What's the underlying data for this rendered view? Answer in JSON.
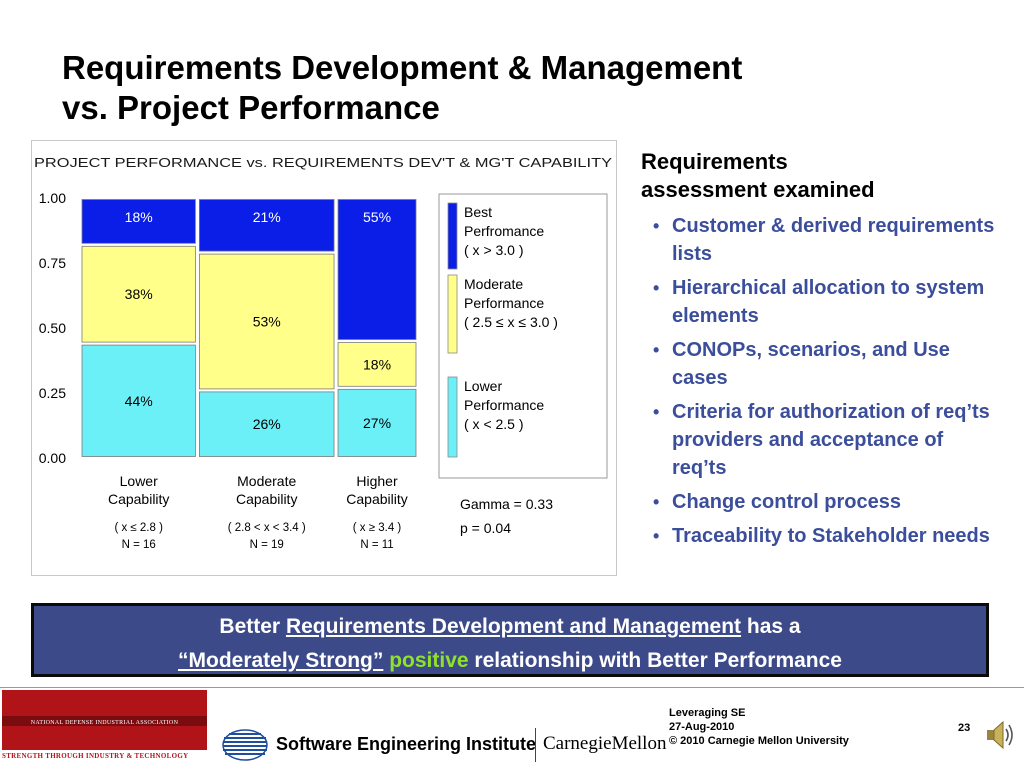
{
  "slide": {
    "title_line1": "Requirements Development & Management",
    "title_line2": "vs. Project Performance"
  },
  "side_panel": {
    "heading_line1": "Requirements",
    "heading_line2": "assessment examined",
    "bullets": [
      "Customer & derived requirements lists",
      "Hierarchical allocation to system elements",
      "CONOPs, scenarios, and Use cases",
      "Criteria for authorization of req’ts providers and acceptance of req’ts",
      "Change control process",
      "Traceability to Stakeholder needs"
    ]
  },
  "callout": {
    "l1_prefix": "Better ",
    "l1_link": "Requirements Development and Management",
    "l1_suffix": " has a",
    "l2_quote": "“Moderately Strong”",
    "l2_positive": "positive",
    "l2_suffix": " relationship with  Better Performance"
  },
  "footer": {
    "ndia_top": "NATIONAL DEFENSE INDUSTRIAL ASSOCIATION",
    "ndia_bottom": "STRENGTH THROUGH INDUSTRY & TECHNOLOGY",
    "sei": "Software Engineering Institute",
    "cmu": "CarnegieMellon",
    "meta_line1": "Leveraging SE",
    "meta_line2": "27-Aug-2010",
    "meta_line3": "© 2010 Carnegie Mellon University",
    "page": "23"
  },
  "colors": {
    "best": "#0a1ee8",
    "moderate": "#ffff8a",
    "lower": "#6cf0f8",
    "bullet_text": "#3b4e9c",
    "callout_bg": "#3d4a8a",
    "positive": "#8fe22a"
  },
  "chart_data": {
    "type": "bar",
    "stacked": true,
    "title": "PROJECT PERFORMANCE vs. REQUIREMENTS DEV'T & MG'T CAPABILITY",
    "ylim": [
      0,
      1
    ],
    "yticks": [
      "0.00",
      "0.25",
      "0.50",
      "0.75",
      "1.00"
    ],
    "ytick_values": [
      0,
      0.25,
      0.5,
      0.75,
      1.0
    ],
    "categories": [
      {
        "line1": "Lower",
        "line2": "Capability",
        "range": "( x ≤ 2.8 )",
        "n": "N = 16",
        "weight": 16
      },
      {
        "line1": "Moderate",
        "line2": "Capability",
        "range": "( 2.8 < x < 3.4 )",
        "n": "N = 19",
        "weight": 19
      },
      {
        "line1": "Higher",
        "line2": "Capability",
        "range": "( x ≥ 3.4 )",
        "n": "N = 11",
        "weight": 11
      }
    ],
    "series": [
      {
        "name": "Lower Performance ( x < 2.5 )",
        "key": "lower",
        "values": [
          0.44,
          0.26,
          0.27
        ],
        "labels": [
          "44%",
          "26%",
          "27%"
        ]
      },
      {
        "name": "Moderate Performance ( 2.5 ≤ x ≤ 3.0 )",
        "key": "moderate",
        "values": [
          0.38,
          0.53,
          0.18
        ],
        "labels": [
          "38%",
          "53%",
          "18%"
        ]
      },
      {
        "name": "Best Perfromance ( x > 3.0 )",
        "key": "best",
        "values": [
          0.18,
          0.21,
          0.55
        ],
        "labels": [
          "18%",
          "21%",
          "55%"
        ]
      }
    ],
    "legend": {
      "placement": "right",
      "best": [
        "Best",
        "Perfromance",
        "( x > 3.0 )"
      ],
      "moderate": [
        "Moderate",
        "Performance",
        "( 2.5 ≤ x ≤ 3.0 )"
      ],
      "lower": [
        "Lower",
        "Performance",
        "( x < 2.5 )"
      ]
    },
    "stats": {
      "gamma": "Gamma = 0.33",
      "p": "p = 0.04"
    }
  }
}
